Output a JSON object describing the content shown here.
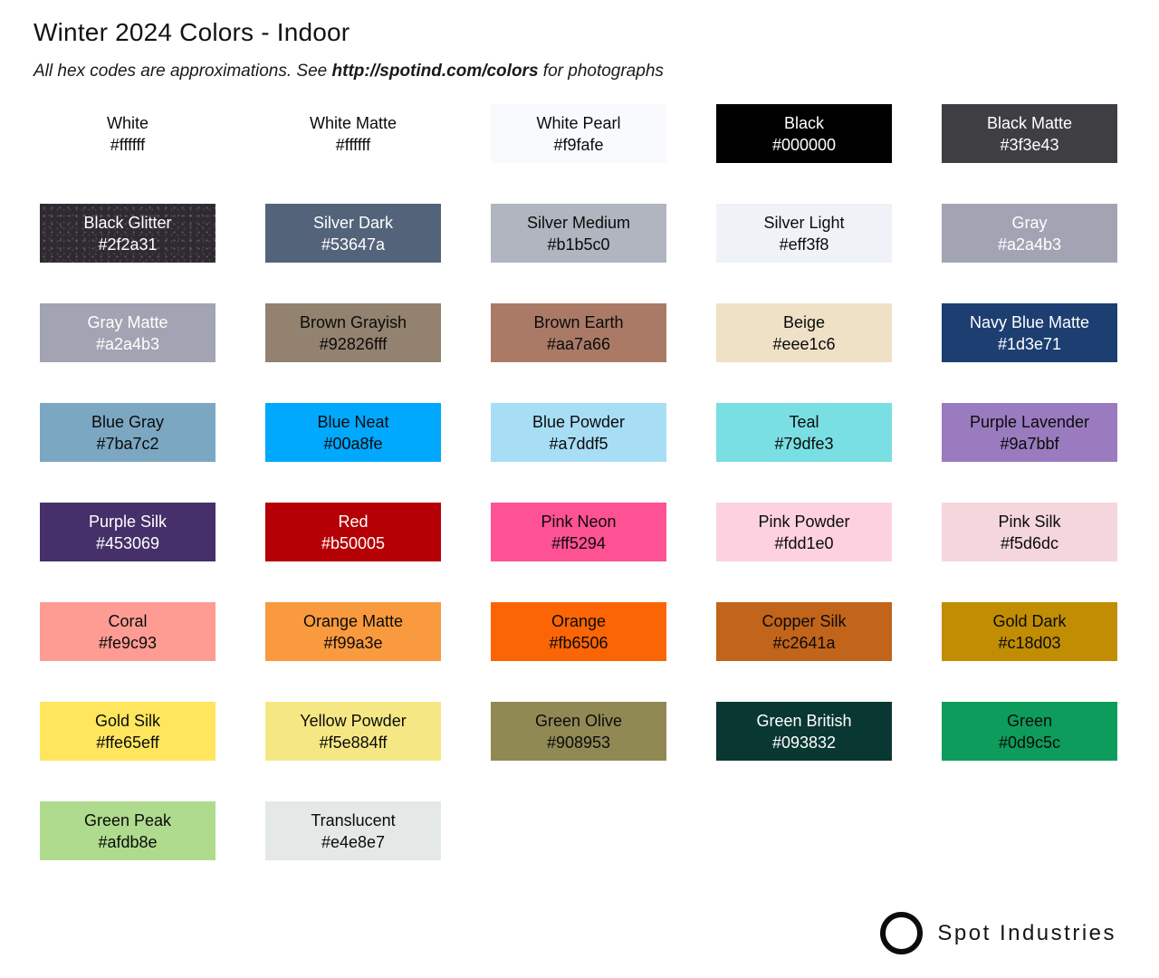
{
  "header": {
    "title": "Winter 2024 Colors - Indoor",
    "subtitle": {
      "prefix": "All hex codes are approximations. See ",
      "link": "http://spotind.com/colors",
      "suffix": " for photographs"
    }
  },
  "brand": {
    "name": "Spot Industries",
    "icon": "circle-ring"
  },
  "palette": {
    "columns": 5,
    "swatches": [
      {
        "name": "White",
        "hex": "#ffffff",
        "css": "#ffffff",
        "text": "dark"
      },
      {
        "name": "White Matte",
        "hex": "#ffffff",
        "css": "#ffffff",
        "text": "dark"
      },
      {
        "name": "White Pearl",
        "hex": "#f9fafe",
        "css": "#f9fafe",
        "text": "dark"
      },
      {
        "name": "Black",
        "hex": "#000000",
        "css": "#000000",
        "text": "light"
      },
      {
        "name": "Black Matte",
        "hex": "#3f3e43",
        "css": "#3f3e43",
        "text": "light"
      },
      {
        "name": "Black Glitter",
        "hex": "#2f2a31",
        "css": "#2f2a31",
        "text": "light",
        "texture": "glitter"
      },
      {
        "name": "Silver Dark",
        "hex": "#53647a",
        "css": "#53647a",
        "text": "light"
      },
      {
        "name": "Silver Medium",
        "hex": "#b1b5c0",
        "css": "#b1b5c0",
        "text": "dark"
      },
      {
        "name": "Silver Light",
        "hex": "#eff3f8",
        "css": "#eff3f8",
        "text": "dark"
      },
      {
        "name": "Gray",
        "hex": "#a2a4b3",
        "css": "#a2a4b3",
        "text": "light"
      },
      {
        "name": "Gray Matte",
        "hex": "#a2a4b3",
        "css": "#a2a4b3",
        "text": "light"
      },
      {
        "name": "Brown Grayish",
        "hex": "#92826fff",
        "css": "#92826f",
        "text": "dark"
      },
      {
        "name": "Brown Earth",
        "hex": "#aa7a66",
        "css": "#aa7a66",
        "text": "dark"
      },
      {
        "name": "Beige",
        "hex": "#eee1c6",
        "css": "#eee1c6",
        "text": "dark"
      },
      {
        "name": "Navy Blue Matte",
        "hex": "#1d3e71",
        "css": "#1d3e71",
        "text": "light"
      },
      {
        "name": "Blue Gray",
        "hex": "#7ba7c2",
        "css": "#7ba7c2",
        "text": "dark"
      },
      {
        "name": "Blue Neat",
        "hex": "#00a8fe",
        "css": "#00a8fe",
        "text": "dark"
      },
      {
        "name": "Blue Powder",
        "hex": "#a7ddf5",
        "css": "#a7ddf5",
        "text": "dark"
      },
      {
        "name": "Teal",
        "hex": "#79dfe3",
        "css": "#79dfe3",
        "text": "dark"
      },
      {
        "name": "Purple Lavender",
        "hex": "#9a7bbf",
        "css": "#9a7bbf",
        "text": "dark"
      },
      {
        "name": "Purple Silk",
        "hex": "#453069",
        "css": "#453069",
        "text": "light"
      },
      {
        "name": "Red",
        "hex": "#b50005",
        "css": "#b50005",
        "text": "light"
      },
      {
        "name": "Pink Neon",
        "hex": "#ff5294",
        "css": "#ff5294",
        "text": "dark"
      },
      {
        "name": "Pink Powder",
        "hex": "#fdd1e0",
        "css": "#fdd1e0",
        "text": "dark"
      },
      {
        "name": "Pink Silk",
        "hex": "#f5d6dc",
        "css": "#f5d6dc",
        "text": "dark"
      },
      {
        "name": "Coral",
        "hex": "#fe9c93",
        "css": "#fe9c93",
        "text": "dark"
      },
      {
        "name": "Orange Matte",
        "hex": "#f99a3e",
        "css": "#f99a3e",
        "text": "dark"
      },
      {
        "name": "Orange",
        "hex": "#fb6506",
        "css": "#fb6506",
        "text": "dark"
      },
      {
        "name": "Copper Silk",
        "hex": "#c2641a",
        "css": "#c2641a",
        "text": "dark"
      },
      {
        "name": "Gold Dark",
        "hex": "#c18d03",
        "css": "#c18d03",
        "text": "dark"
      },
      {
        "name": "Gold Silk",
        "hex": "#ffe65eff",
        "css": "#ffe65e",
        "text": "dark"
      },
      {
        "name": "Yellow Powder",
        "hex": "#f5e884ff",
        "css": "#f5e884",
        "text": "dark"
      },
      {
        "name": "Green Olive",
        "hex": "#908953",
        "css": "#908953",
        "text": "dark"
      },
      {
        "name": "Green British",
        "hex": "#093832",
        "css": "#093832",
        "text": "light"
      },
      {
        "name": "Green",
        "hex": "#0d9c5c",
        "css": "#0d9c5c",
        "text": "dark"
      },
      {
        "name": "Green Peak",
        "hex": "#afdb8e",
        "css": "#afdb8e",
        "text": "dark"
      },
      {
        "name": "Translucent",
        "hex": "#e4e8e7",
        "css": "#e4e8e7",
        "text": "dark"
      }
    ]
  }
}
